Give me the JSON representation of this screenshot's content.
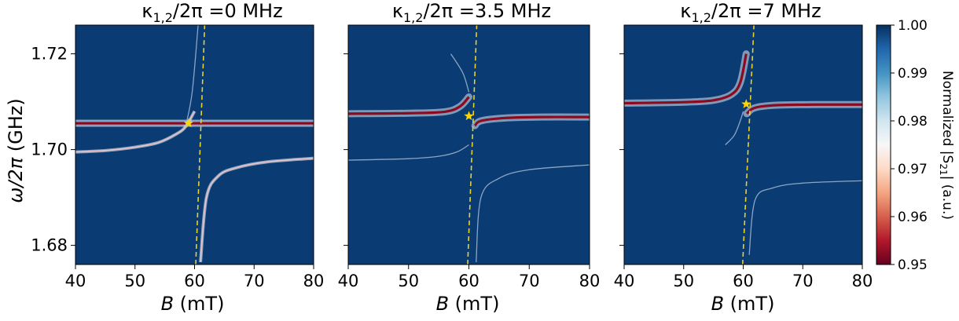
{
  "chart_data": [
    {
      "type": "heatmap",
      "title": "κ1,2/2π =0 MHz",
      "title_main": "κ",
      "title_sub": "1,2",
      "title_rest": "/2π =0 MHz",
      "xlabel_var": "B",
      "xlabel_unit": " (mT)",
      "ylabel_var": "ω/2π",
      "ylabel_unit": " (GHz)",
      "xlim": [
        40,
        80
      ],
      "ylim": [
        1.676,
        1.726
      ],
      "xticks": [
        40,
        50,
        60,
        70,
        80
      ],
      "xtick_labels": [
        "40",
        "50",
        "60",
        "70",
        "80"
      ],
      "yticks": [
        1.68,
        1.7,
        1.72
      ],
      "ytick_labels": [
        "1.68",
        "1.70",
        "1.72"
      ],
      "cavity_freq_GHz": 1.7055,
      "fmr_line_B_mT": [
        [
          60.2,
          1.676
        ],
        [
          61.7,
          1.726
        ]
      ],
      "star": {
        "B_mT": 59.0,
        "freq_GHz": 1.7055
      },
      "lower_branch_B_mT": [
        40,
        45,
        50,
        54,
        57,
        58.5,
        60
      ],
      "lower_branch_GHz": [
        1.6995,
        1.6998,
        1.7005,
        1.7015,
        1.7033,
        1.7048,
        1.708
      ],
      "upper_branch_B_mT": [
        61,
        62,
        64,
        67,
        72,
        80
      ],
      "upper_branch_GHz": [
        1.6765,
        1.69,
        1.6945,
        1.6962,
        1.6974,
        1.6982
      ]
    },
    {
      "type": "heatmap",
      "title": "κ1,2/2π =3.5 MHz",
      "title_main": "κ",
      "title_sub": "1,2",
      "title_rest": "/2π =3.5 MHz",
      "xlabel_var": "B",
      "xlabel_unit": " (mT)",
      "xlim": [
        40,
        80
      ],
      "ylim": [
        1.676,
        1.726
      ],
      "xticks": [
        40,
        50,
        60,
        70,
        80
      ],
      "xtick_labels": [
        "40",
        "50",
        "60",
        "70",
        "80"
      ],
      "yticks": [
        1.68,
        1.7,
        1.72
      ],
      "ytick_labels": [
        "",
        "",
        ""
      ],
      "fmr_line_B_mT": [
        [
          59.8,
          1.676
        ],
        [
          61.3,
          1.726
        ]
      ],
      "star": {
        "B_mT": 60.0,
        "freq_GHz": 1.707
      },
      "red_branch_B_mT": [
        40,
        50,
        56,
        58.5,
        60,
        61,
        62,
        66,
        72,
        80
      ],
      "red_branch_GHz": [
        1.7075,
        1.7076,
        1.7079,
        1.709,
        1.711,
        1.705,
        1.706,
        1.7066,
        1.7068,
        1.7068
      ],
      "lower_branch_B_mT": [
        40,
        50,
        55,
        58,
        60
      ],
      "lower_branch_GHz": [
        1.6978,
        1.6981,
        1.6986,
        1.6995,
        1.701
      ],
      "upper_branch_B_mT": [
        61.2,
        62,
        65,
        70,
        80
      ],
      "upper_branch_GHz": [
        1.6765,
        1.69,
        1.694,
        1.6958,
        1.6968
      ],
      "upper_ghost_B_mT": [
        57,
        59,
        60
      ],
      "upper_ghost_GHz": [
        1.72,
        1.716,
        1.712
      ]
    },
    {
      "type": "heatmap",
      "title": "κ1,2/2π =7 MHz",
      "title_main": "κ",
      "title_sub": "1,2",
      "title_rest": "/2π =7 MHz",
      "xlabel_var": "B",
      "xlabel_unit": " (mT)",
      "xlim": [
        40,
        80
      ],
      "ylim": [
        1.676,
        1.726
      ],
      "xticks": [
        40,
        50,
        60,
        70,
        80
      ],
      "xtick_labels": [
        "40",
        "50",
        "60",
        "70",
        "80"
      ],
      "yticks": [
        1.68,
        1.7,
        1.72
      ],
      "ytick_labels": [
        "",
        "",
        ""
      ],
      "fmr_line_B_mT": [
        [
          59.9,
          1.676
        ],
        [
          61.8,
          1.726
        ]
      ],
      "star": {
        "B_mT": 60.5,
        "freq_GHz": 1.7095
      },
      "left_branch_B_mT": [
        40,
        50,
        55,
        58,
        59.5,
        60.5
      ],
      "left_branch_GHz": [
        1.7097,
        1.7099,
        1.7103,
        1.7115,
        1.714,
        1.72
      ],
      "right_branch_B_mT": [
        60.6,
        61.5,
        63,
        66,
        72,
        80
      ],
      "right_branch_GHz": [
        1.7075,
        1.7085,
        1.709,
        1.7093,
        1.7094,
        1.7094
      ],
      "dip_branch_B_mT": [
        57,
        58.5,
        59.5,
        60
      ],
      "dip_branch_GHz": [
        1.701,
        1.703,
        1.706,
        1.708
      ],
      "lower_branch_B_mT": [
        61,
        62,
        65,
        70,
        80
      ],
      "lower_branch_GHz": [
        1.678,
        1.6895,
        1.692,
        1.693,
        1.6935
      ]
    }
  ],
  "colorbar": {
    "label_prefix": "Normalized |S",
    "label_sub": "21",
    "label_suffix": "| (a.u.)",
    "vmin": 0.95,
    "vmax": 1.0,
    "ticks": [
      1.0,
      0.99,
      0.98,
      0.97,
      0.96,
      0.95
    ],
    "tick_labels": [
      "1.00",
      "0.99",
      "0.98",
      "0.97",
      "0.96",
      "0.95"
    ],
    "colors": [
      "#67001f",
      "#b2182b",
      "#d6604d",
      "#f4a582",
      "#fddbc7",
      "#f7f7f7",
      "#d1e5f0",
      "#92c5de",
      "#4393c3",
      "#2166ac",
      "#053061"
    ]
  },
  "colors": {
    "background": "#0b3b73",
    "fmr_line": "#e6d22e",
    "star": "#ffd700",
    "resonance_red": "#8b0a1e",
    "glow_white": "#dfe8f2",
    "faint_branch": "#9fb9d6"
  }
}
